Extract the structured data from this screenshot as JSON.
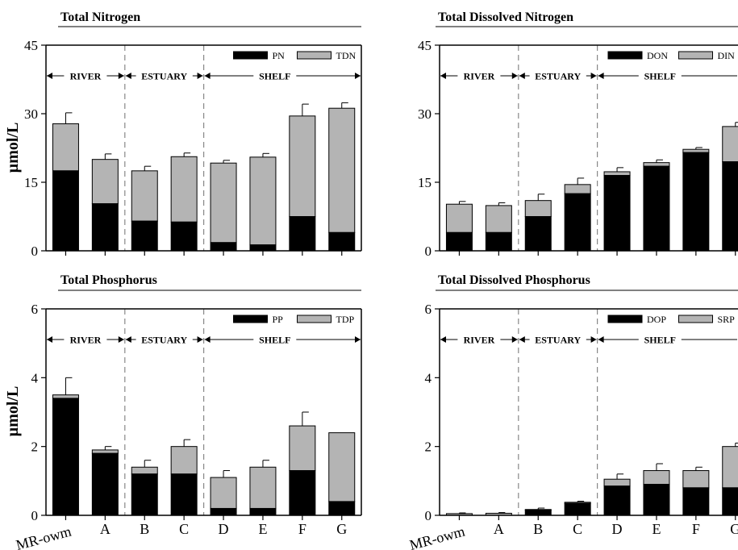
{
  "ylabel": "µmol/L",
  "legend_colors": {
    "lower": "#000000",
    "upper": "#b4b4b4"
  },
  "chart_data": [
    {
      "type": "bar",
      "stacked": true,
      "title": "Total Nitrogen",
      "categories": [
        "MR-owm",
        "A",
        "B",
        "C",
        "D",
        "E",
        "F",
        "G"
      ],
      "ylim": [
        0,
        45
      ],
      "yticks": [
        0,
        15,
        30,
        45
      ],
      "regions": [
        {
          "label": "RIVER",
          "start": 0,
          "end": 2
        },
        {
          "label": "ESTUARY",
          "start": 2,
          "end": 4
        },
        {
          "label": "SHELF",
          "start": 4,
          "end": 8
        }
      ],
      "series": [
        {
          "name": "PN",
          "values": [
            17.5,
            10.3,
            6.5,
            6.3,
            1.8,
            1.3,
            7.5,
            4.0
          ]
        },
        {
          "name": "TDN",
          "values": [
            10.3,
            9.7,
            11.0,
            14.3,
            17.4,
            19.2,
            22.0,
            27.2
          ]
        }
      ],
      "error": [
        2.4,
        1.2,
        1.0,
        0.8,
        0.6,
        0.8,
        2.6,
        1.2
      ],
      "legend_position": "top-right"
    },
    {
      "type": "bar",
      "stacked": true,
      "title": "Total Dissolved Nitrogen",
      "categories": [
        "MR-owm",
        "A",
        "B",
        "C",
        "D",
        "E",
        "F",
        "G"
      ],
      "ylim": [
        0,
        45
      ],
      "yticks": [
        0,
        15,
        30,
        45
      ],
      "regions": [
        {
          "label": "RIVER",
          "start": 0,
          "end": 2
        },
        {
          "label": "ESTUARY",
          "start": 2,
          "end": 4
        },
        {
          "label": "SHELF",
          "start": 4,
          "end": 8
        }
      ],
      "series": [
        {
          "name": "DON",
          "values": [
            4.0,
            4.0,
            7.5,
            12.5,
            16.5,
            18.5,
            21.5,
            19.5
          ]
        },
        {
          "name": "DIN",
          "values": [
            6.2,
            5.9,
            3.5,
            2.0,
            0.8,
            0.8,
            0.7,
            7.7
          ]
        }
      ],
      "error": [
        0.6,
        0.6,
        1.4,
        1.4,
        0.9,
        0.6,
        0.4,
        0.9
      ],
      "legend_position": "top-right"
    },
    {
      "type": "bar",
      "stacked": true,
      "title": "Total Phosphorus",
      "categories": [
        "MR-owm",
        "A",
        "B",
        "C",
        "D",
        "E",
        "F",
        "G"
      ],
      "ylim": [
        0,
        6
      ],
      "yticks": [
        0,
        2,
        4,
        6
      ],
      "regions": [
        {
          "label": "RIVER",
          "start": 0,
          "end": 2
        },
        {
          "label": "ESTUARY",
          "start": 2,
          "end": 4
        },
        {
          "label": "SHELF",
          "start": 4,
          "end": 8
        }
      ],
      "series": [
        {
          "name": "PP",
          "values": [
            3.4,
            1.8,
            1.2,
            1.2,
            0.2,
            0.2,
            1.3,
            0.4
          ]
        },
        {
          "name": "TDP",
          "values": [
            0.1,
            0.1,
            0.2,
            0.8,
            0.9,
            1.2,
            1.3,
            2.0
          ]
        }
      ],
      "error": [
        0.5,
        0.1,
        0.2,
        0.2,
        0.2,
        0.2,
        0.4,
        0.0
      ],
      "legend_position": "top-right"
    },
    {
      "type": "bar",
      "stacked": true,
      "title": "Total Dissolved Phosphorus",
      "categories": [
        "MR-owm",
        "A",
        "B",
        "C",
        "D",
        "E",
        "F",
        "G"
      ],
      "ylim": [
        0,
        6
      ],
      "yticks": [
        0,
        2,
        4,
        6
      ],
      "regions": [
        {
          "label": "RIVER",
          "start": 0,
          "end": 2
        },
        {
          "label": "ESTUARY",
          "start": 2,
          "end": 4
        },
        {
          "label": "SHELF",
          "start": 4,
          "end": 8
        }
      ],
      "series": [
        {
          "name": "DOP",
          "values": [
            0.0,
            0.0,
            0.15,
            0.35,
            0.85,
            0.9,
            0.8,
            0.8
          ]
        },
        {
          "name": "SRP",
          "values": [
            0.05,
            0.06,
            0.02,
            0.03,
            0.2,
            0.4,
            0.5,
            1.2
          ]
        }
      ],
      "error": [
        0.02,
        0.02,
        0.04,
        0.03,
        0.15,
        0.2,
        0.1,
        0.1
      ],
      "legend_position": "top-right"
    }
  ]
}
